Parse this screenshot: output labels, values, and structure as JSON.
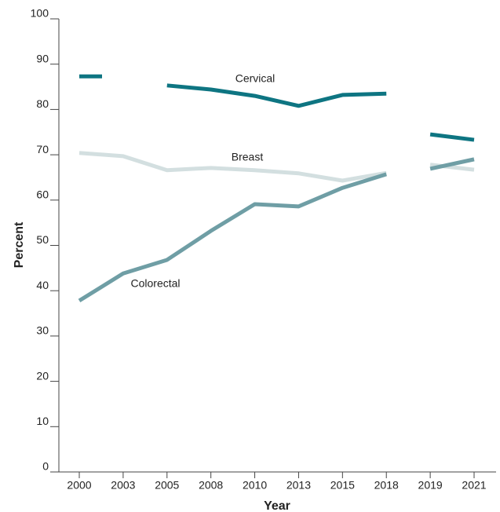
{
  "chart_data": {
    "type": "line",
    "x_label": "Year",
    "y_label": "Percent",
    "categories": [
      "2000",
      "2003",
      "2005",
      "2008",
      "2010",
      "2013",
      "2015",
      "2018",
      "2019",
      "2021"
    ],
    "line_break_after": "2018",
    "series": [
      {
        "name": "Cervical",
        "color": "#0e7582",
        "values": [
          87.3,
          null,
          85.3,
          84.4,
          83.0,
          80.8,
          83.2,
          83.5,
          74.5,
          73.3
        ]
      },
      {
        "name": "Breast",
        "color": "#d3dfe0",
        "values": [
          70.4,
          69.7,
          66.6,
          67.1,
          66.6,
          65.9,
          64.3,
          66.0,
          67.8,
          66.7
        ]
      },
      {
        "name": "Colorectal",
        "color": "#6f9ea5",
        "values": [
          37.8,
          43.8,
          46.8,
          53.2,
          59.1,
          58.6,
          62.7,
          65.7,
          66.9,
          69.0
        ]
      }
    ],
    "ylim": [
      0,
      100
    ],
    "yticks": [
      0,
      10,
      20,
      30,
      40,
      50,
      60,
      70,
      80,
      90,
      100
    ],
    "grid": false
  }
}
